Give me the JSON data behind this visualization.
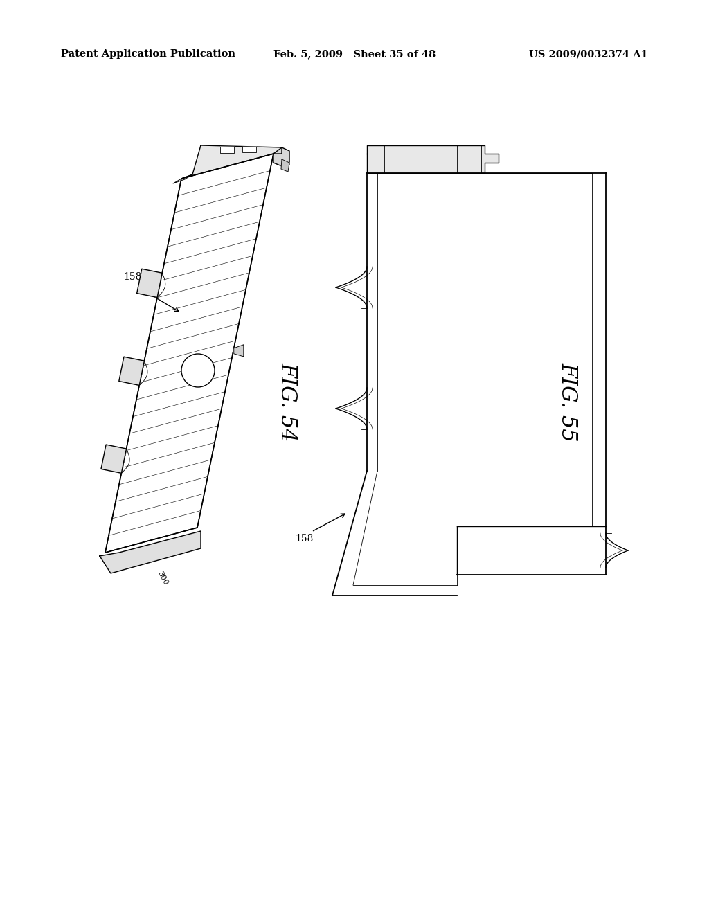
{
  "background_color": "#ffffff",
  "header_left": "Patent Application Publication",
  "header_center": "Feb. 5, 2009   Sheet 35 of 48",
  "header_right": "US 2009/0032374 A1",
  "header_fontsize": 10.5,
  "fig54_label": "FIG. 54",
  "fig55_label": "FIG. 55",
  "fig_label_fontsize": 22,
  "annotation_fontsize": 10
}
